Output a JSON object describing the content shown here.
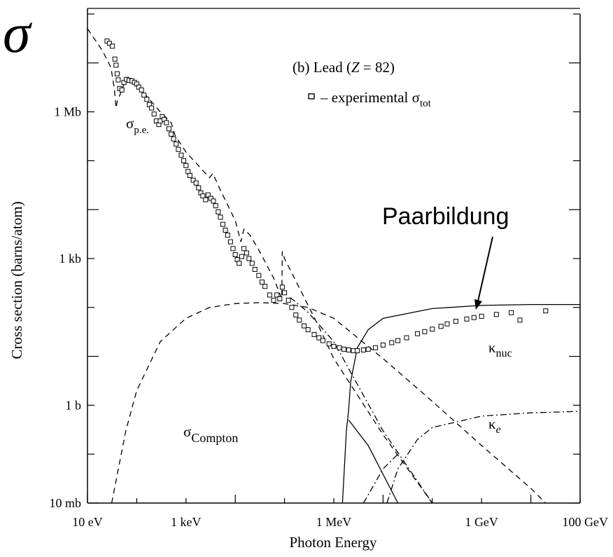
{
  "chart_data": {
    "type": "line",
    "corner_symbol": "σ",
    "title": "(b) Lead (Z = 82)",
    "title_parts": [
      "(b) Lead (",
      "Z",
      " = 82)"
    ],
    "legend_text": "– experimental σ",
    "legend_sub": "tot",
    "xlabel": "Photon Energy",
    "ylabel": "Cross section  (barns/atom)",
    "x_scale": "log",
    "y_scale": "log",
    "x_unit": "eV",
    "y_unit": "barns/atom",
    "xlim": [
      10,
      100000000000.0
    ],
    "ylim": [
      0.01,
      100000000.0
    ],
    "x_ticks": [
      {
        "value": 10,
        "label": "10 eV"
      },
      {
        "value": 1000,
        "label": "1 keV"
      },
      {
        "value": 1000000,
        "label": "1 MeV"
      },
      {
        "value": 1000000000,
        "label": "1 GeV"
      },
      {
        "value": 100000000000,
        "label": "100 GeV"
      }
    ],
    "y_ticks": [
      {
        "value": 0.01,
        "label": "10 mb"
      },
      {
        "value": 1,
        "label": "1 b"
      },
      {
        "value": 1000,
        "label": "1 kb"
      },
      {
        "value": 1000000,
        "label": "1 Mb"
      }
    ],
    "labels": {
      "pe": {
        "main": "σ",
        "sub": "p.e."
      },
      "compton": {
        "main": "σ",
        "sub": "Compton"
      },
      "knuc": {
        "main": "κ",
        "sub": "nuc"
      },
      "ke": {
        "main": "κ",
        "sub": "e"
      },
      "paar": "Paarbildung"
    },
    "series": [
      {
        "key": "pe",
        "style": "dash",
        "points": [
          [
            10,
            50000000.0
          ],
          [
            20,
            18000000.0
          ],
          [
            30,
            8000000.0
          ],
          [
            35,
            3000000.0
          ],
          [
            38,
            1200000.0
          ],
          [
            40,
            1600000.0
          ],
          [
            55,
            3600000.0
          ],
          [
            70,
            4400000.0
          ],
          [
            100,
            3600000.0
          ],
          [
            200,
            1600000.0
          ],
          [
            300,
            1000000.0
          ],
          [
            500,
            600000.0
          ],
          [
            600,
            330000.0
          ],
          [
            1000,
            150000.0
          ],
          [
            3000,
            45000.0
          ],
          [
            3500,
            55000.0
          ],
          [
            5000,
            25000.0
          ],
          [
            10000.0,
            6000.0
          ],
          [
            13000.0,
            2200.0
          ],
          [
            15000.0,
            4000.0
          ],
          [
            20000.0,
            3000.0
          ],
          [
            30000.0,
            1500.0
          ],
          [
            60000.0,
            400
          ],
          [
            88000.0,
            150
          ],
          [
            90000.0,
            1400
          ],
          [
            100000.0,
            1000
          ],
          [
            200000.0,
            250
          ],
          [
            500000.0,
            40
          ],
          [
            1000000.0,
            9
          ],
          [
            10000000.0,
            0.25
          ],
          [
            100000000.0,
            0.01
          ]
        ]
      },
      {
        "key": "compton",
        "style": "dash",
        "points": [
          [
            31,
            0.01
          ],
          [
            60,
            0.3
          ],
          [
            100,
            2
          ],
          [
            300,
            20
          ],
          [
            1000,
            60
          ],
          [
            3000,
            100
          ],
          [
            10000.0,
            120
          ],
          [
            30000.0,
            125
          ],
          [
            100000.0,
            120
          ],
          [
            300000.0,
            100
          ],
          [
            1000000.0,
            60
          ],
          [
            10000000.0,
            9
          ],
          [
            100000000.0,
            1.2
          ],
          [
            1000000000.0,
            0.15
          ],
          [
            10000000000.0,
            0.02
          ],
          [
            20000000000.0,
            0.01
          ]
        ]
      },
      {
        "key": "coherent",
        "style": "dashdot",
        "points": [
          [
            130000.0,
            160
          ],
          [
            300000.0,
            80
          ],
          [
            1000000.0,
            20
          ],
          [
            10000000.0,
            0.3
          ],
          [
            100000000.0,
            0.01
          ]
        ]
      },
      {
        "key": "knuc",
        "style": "solid",
        "points": [
          [
            1500000.0,
            0.01
          ],
          [
            1800000.0,
            0.3
          ],
          [
            2000000.0,
            0.8
          ],
          [
            2200000.0,
            3
          ],
          [
            3000000.0,
            15
          ],
          [
            5000000.0,
            35
          ],
          [
            10000000.0,
            60
          ],
          [
            100000000.0,
            95
          ],
          [
            1000000000.0,
            110
          ],
          [
            10000000000.0,
            115
          ],
          [
            100000000000.0,
            115
          ]
        ]
      },
      {
        "key": "pair_falling",
        "style": "solid",
        "points": [
          [
            2000000.0,
            0.5
          ],
          [
            5000000.0,
            0.15
          ],
          [
            20000000.0,
            0.01
          ]
        ]
      },
      {
        "key": "ke",
        "style": "dashdot",
        "points": [
          [
            12000000.0,
            0.01
          ],
          [
            20000000.0,
            0.05
          ],
          [
            50000000.0,
            0.2
          ],
          [
            100000000.0,
            0.35
          ],
          [
            1000000000.0,
            0.6
          ],
          [
            10000000000.0,
            0.7
          ],
          [
            100000000000.0,
            0.75
          ]
        ]
      },
      {
        "key": "ke_left",
        "style": "dashdot",
        "points": [
          [
            4000000.0,
            0.01
          ],
          [
            10000000.0,
            0.05
          ],
          [
            20000000.0,
            0.1
          ]
        ]
      }
    ],
    "experimental": [
      [
        25,
        28000000.0
      ],
      [
        28,
        25000000.0
      ],
      [
        32,
        22000000.0
      ],
      [
        36,
        12000000.0
      ],
      [
        38,
        9000000.0
      ],
      [
        40,
        6000000.0
      ],
      [
        42,
        4500000.0
      ],
      [
        45,
        3000000.0
      ],
      [
        50,
        2800000.0
      ],
      [
        55,
        4000000.0
      ],
      [
        62,
        4600000.0
      ],
      [
        70,
        4400000.0
      ],
      [
        80,
        4300000.0
      ],
      [
        90,
        4000000.0
      ],
      [
        100,
        3700000.0
      ],
      [
        110,
        3200000.0
      ],
      [
        125,
        2800000.0
      ],
      [
        140,
        2200000.0
      ],
      [
        160,
        1800000.0
      ],
      [
        180,
        1400000.0
      ],
      [
        200,
        1200000.0
      ],
      [
        225,
        900000.0
      ],
      [
        250,
        650000.0
      ],
      [
        280,
        550000.0
      ],
      [
        300,
        650000.0
      ],
      [
        330,
        800000.0
      ],
      [
        360,
        700000.0
      ],
      [
        400,
        600000.0
      ],
      [
        450,
        450000.0
      ],
      [
        500,
        350000.0
      ],
      [
        560,
        280000.0
      ],
      [
        630,
        220000.0
      ],
      [
        700,
        170000.0
      ],
      [
        800,
        130000.0
      ],
      [
        900,
        100000.0
      ],
      [
        1000,
        80000.0
      ],
      [
        1100,
        60000.0
      ],
      [
        1200,
        50000.0
      ],
      [
        1400,
        40000.0
      ],
      [
        1600,
        35000.0
      ],
      [
        1800,
        28000.0
      ],
      [
        2000,
        22000.0
      ],
      [
        2200,
        19000.0
      ],
      [
        2500,
        16000.0
      ],
      [
        2800,
        20000.0
      ],
      [
        3200,
        17000.0
      ],
      [
        3600,
        15000.0
      ],
      [
        4000,
        12000.0
      ],
      [
        4500,
        9000.0
      ],
      [
        5000,
        7000.0
      ],
      [
        5600,
        5000.0
      ],
      [
        6300,
        3800.0
      ],
      [
        7000,
        3000.0
      ],
      [
        8000,
        2200.0
      ],
      [
        9000,
        1600.0
      ],
      [
        10000.0,
        1200.0
      ],
      [
        11000.0,
        950
      ],
      [
        12000.0,
        800
      ],
      [
        13500.0,
        1100.0
      ],
      [
        15000.0,
        1600.0
      ],
      [
        17000.0,
        1300.0
      ],
      [
        19000.0,
        1000.0
      ],
      [
        22000.0,
        800
      ],
      [
        25000.0,
        600
      ],
      [
        30000.0,
        450
      ],
      [
        35000.0,
        330
      ],
      [
        40000.0,
        270
      ],
      [
        50000.0,
        180
      ],
      [
        60000.0,
        140
      ],
      [
        70000.0,
        180
      ],
      [
        80000.0,
        150
      ],
      [
        90000.0,
        260
      ],
      [
        100000.0,
        200
      ],
      [
        120000.0,
        140
      ],
      [
        140000.0,
        100
      ],
      [
        170000.0,
        70
      ],
      [
        200000.0,
        55
      ],
      [
        250000.0,
        42
      ],
      [
        300000.0,
        35
      ],
      [
        400000.0,
        28
      ],
      [
        500000.0,
        24
      ],
      [
        600000.0,
        21
      ],
      [
        800000.0,
        18
      ],
      [
        1000000.0,
        16
      ],
      [
        1300000.0,
        15
      ],
      [
        1600000.0,
        14
      ],
      [
        2000000.0,
        13.5
      ],
      [
        2500000.0,
        13
      ],
      [
        3000000.0,
        13
      ],
      [
        4000000.0,
        13.5
      ],
      [
        5000000.0,
        14
      ],
      [
        7000000.0,
        15
      ],
      [
        10000000.0,
        17
      ],
      [
        15000000.0,
        19
      ],
      [
        20000000.0,
        21
      ],
      [
        30000000.0,
        24
      ],
      [
        50000000.0,
        29
      ],
      [
        70000000.0,
        32
      ],
      [
        100000000.0,
        36
      ],
      [
        150000000.0,
        41
      ],
      [
        200000000.0,
        46
      ],
      [
        300000000.0,
        52
      ],
      [
        500000000.0,
        58
      ],
      [
        700000000.0,
        62
      ],
      [
        1000000000.0,
        66
      ],
      [
        2000000000.0,
        72
      ],
      [
        4000000000.0,
        78
      ],
      [
        6000000000.0,
        55
      ],
      [
        20000000000.0,
        85
      ]
    ]
  }
}
